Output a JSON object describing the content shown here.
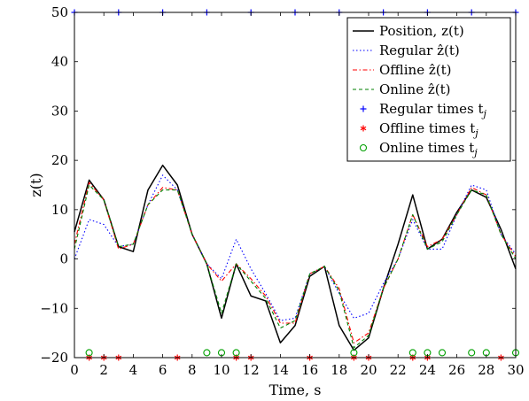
{
  "chart_data": {
    "type": "line",
    "xlabel": "Time, s",
    "ylabel": "z(t)",
    "xlim": [
      0,
      30
    ],
    "ylim": [
      -20,
      50
    ],
    "xticks": [
      "0",
      "2",
      "4",
      "6",
      "8",
      "10",
      "12",
      "14",
      "16",
      "18",
      "20",
      "22",
      "24",
      "26",
      "28",
      "30"
    ],
    "yticks": [
      "−20",
      "−10",
      "0",
      "10",
      "20",
      "30",
      "40",
      "50"
    ],
    "grid": false,
    "legend_position": "top-right",
    "x": [
      0,
      1,
      2,
      3,
      4,
      5,
      6,
      7,
      8,
      9,
      10,
      11,
      12,
      13,
      14,
      15,
      16,
      17,
      18,
      19,
      20,
      21,
      22,
      23,
      24,
      25,
      26,
      27,
      28,
      29,
      30
    ],
    "series": [
      {
        "name": "Position, z(t)",
        "style": "solid",
        "color": "#000000",
        "values": [
          5.5,
          16,
          12,
          2.5,
          1.5,
          14,
          19,
          15,
          5,
          -1,
          -12,
          -1,
          -7.5,
          -8.5,
          -17,
          -13.5,
          -3.5,
          -1.5,
          -13.5,
          -18.5,
          -16,
          -6,
          3,
          13,
          2,
          4,
          9.5,
          14,
          12.5,
          6,
          -2
        ]
      },
      {
        "name": "Regular ẑ(t)",
        "style": "dotted",
        "color": "#0000ff",
        "values": [
          0,
          8,
          7,
          2.5,
          3,
          11,
          17,
          14,
          5,
          -1,
          -4,
          4,
          -2,
          -7,
          -12.5,
          -12,
          -3,
          -1.5,
          -7,
          -12,
          -11,
          -5,
          0,
          8,
          2,
          2,
          9,
          15,
          14,
          5,
          1
        ]
      },
      {
        "name": "Offline ẑ(t)",
        "style": "dashdot",
        "color": "#ff0000",
        "values": [
          3,
          15.5,
          12,
          2,
          3,
          11,
          14.5,
          14,
          5,
          -1,
          -4.5,
          -1,
          -4,
          -7.5,
          -13,
          -13,
          -3,
          -1.5,
          -6,
          -17,
          -15,
          -6,
          0,
          9,
          2.5,
          4,
          9,
          14.5,
          13,
          5,
          0.5
        ]
      },
      {
        "name": "Online ẑ(t)",
        "style": "dashed",
        "color": "#008000",
        "values": [
          2,
          15,
          12,
          2.5,
          3,
          11,
          14,
          14,
          5,
          -1,
          -11,
          -1,
          -4.5,
          -8,
          -14,
          -12.5,
          -3,
          -1.5,
          -6.5,
          -18,
          -15.5,
          -6,
          0,
          9,
          2,
          3.5,
          9,
          14,
          13,
          5,
          0
        ]
      }
    ],
    "marker_series": [
      {
        "name": "Regular times t",
        "subscript": "j",
        "marker": "plus",
        "color": "#0000ff",
        "y": 50,
        "x": [
          0,
          3,
          6,
          9,
          12,
          15,
          18,
          21,
          24,
          27,
          30
        ]
      },
      {
        "name": "Offline times t",
        "subscript": "j",
        "marker": "asterisk",
        "color": "#ff0000",
        "y": -20,
        "x": [
          1,
          2,
          3,
          7,
          11,
          12,
          16,
          19,
          20,
          23,
          24,
          29
        ]
      },
      {
        "name": "Online times t",
        "subscript": "j",
        "marker": "circle",
        "color": "#00a000",
        "y": -19,
        "x": [
          1,
          9,
          10,
          11,
          19,
          23,
          24,
          25,
          27,
          28,
          30
        ]
      }
    ]
  }
}
